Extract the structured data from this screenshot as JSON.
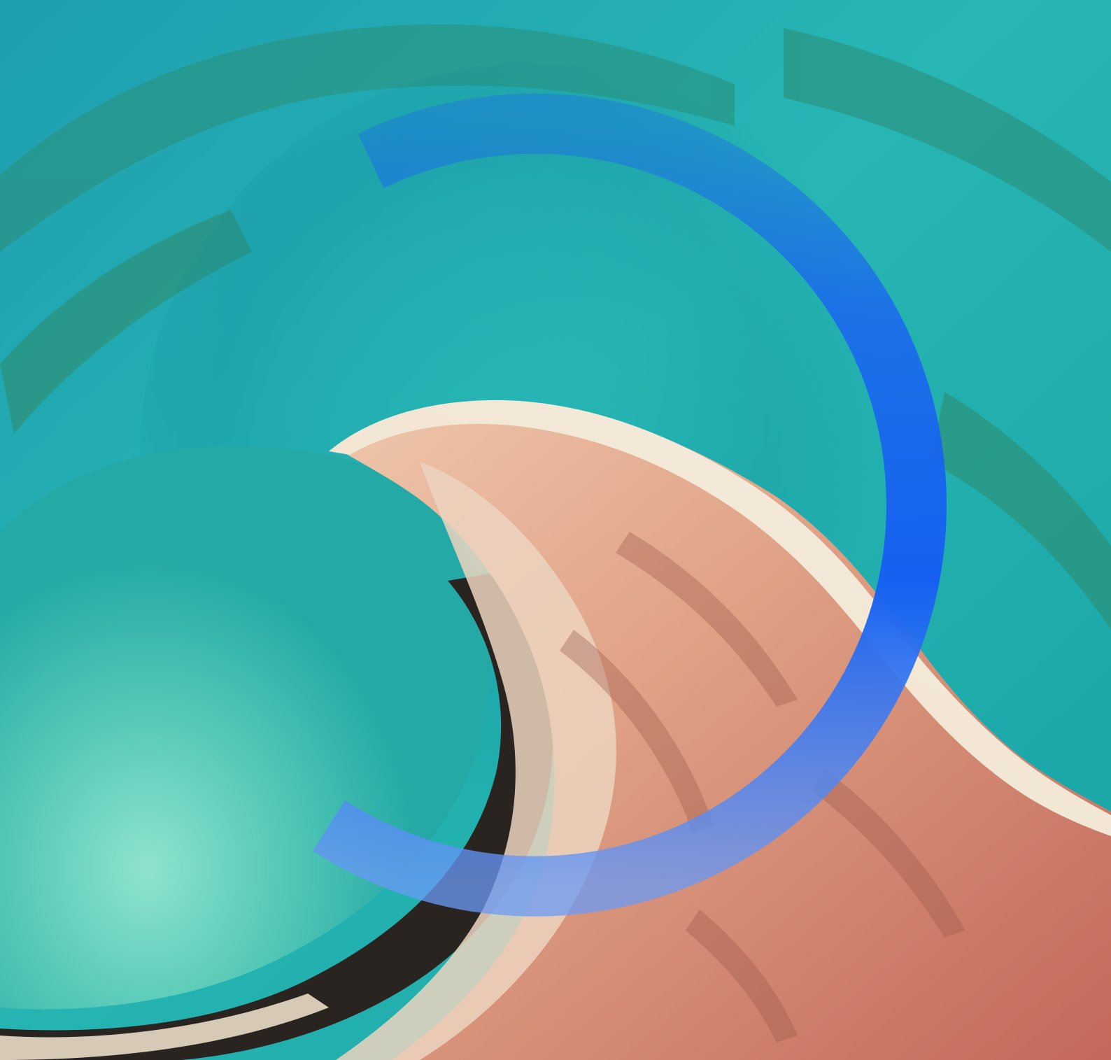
{
  "image": {
    "subject": "aerial-coastline-spit",
    "colors": {
      "lagoon_turquoise": "#2fb8b2",
      "deep_teal": "#15858d",
      "shallow_aqua": "#6cd6c5",
      "reef_green": "#2f7d5a",
      "sand_white": "#efe6d4",
      "beach_pink": "#e2a286",
      "red_earth": "#c46a5a",
      "dark_shore": "#2a2420",
      "ring_blue_top": "#1a66f0",
      "ring_blue_bottom": "#5a8ff5"
    },
    "overlay": {
      "shape": "open-ring",
      "icon": "ring-arc-icon"
    }
  }
}
